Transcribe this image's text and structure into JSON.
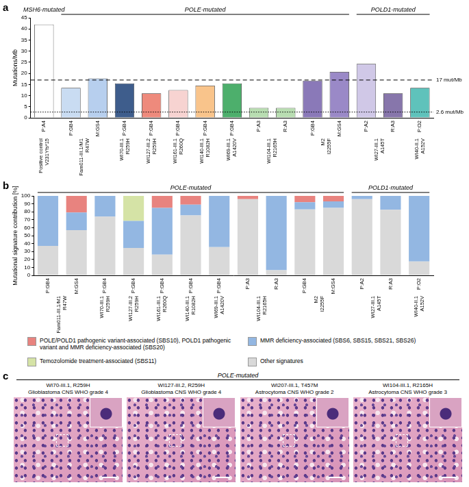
{
  "panel_labels": [
    "a",
    "b",
    "c"
  ],
  "chart_data": [
    {
      "type": "bar",
      "y_label": "Mutations/Mb",
      "categories": [
        "P:A4",
        "P:GB4",
        "M:GS4",
        "P:GB4",
        "P:GB4",
        "P:GB4",
        "P:GB4",
        "P:GB4",
        "P:A3",
        "R:A3",
        "P:GB4",
        "M:GS4",
        "P:A2",
        "R:A3",
        "P:O2"
      ],
      "values": [
        42,
        13.5,
        17.7,
        15.5,
        11,
        12.5,
        14.5,
        15.5,
        4.5,
        4.5,
        16.7,
        20.7,
        24.3,
        11,
        13.5
      ],
      "colors": [
        "#ffffff",
        "#c9dcf2",
        "#b7cfee",
        "#3e5d8c",
        "#ee8a7c",
        "#f7d3d1",
        "#f9c48b",
        "#4daf6c",
        "#b8ddb1",
        "#b8ddb1",
        "#8a79b8",
        "#9a89c7",
        "#d0c8e7",
        "#8776ab",
        "#5fc2bb"
      ],
      "patients": [
        {
          "label": [
            "Positive control",
            "V231Yfs*15"
          ],
          "first": 0,
          "last": 0
        },
        {
          "label": [
            "Fam011-III.1/M1",
            "R47W"
          ],
          "first": 1,
          "last": 2
        },
        {
          "label": [
            "WI70-III.1",
            "R259H"
          ],
          "first": 3,
          "last": 3
        },
        {
          "label": [
            "WI127-III.2",
            "R259H"
          ],
          "first": 4,
          "last": 4
        },
        {
          "label": [
            "WI161-III.1",
            "R260Q"
          ],
          "first": 5,
          "last": 5
        },
        {
          "label": [
            "WI140-III.1",
            "R1082H"
          ],
          "first": 6,
          "last": 6
        },
        {
          "label": [
            "WI69-III.1",
            "A1420V"
          ],
          "first": 7,
          "last": 7
        },
        {
          "label": [
            "WI104-III.1",
            "R2165H"
          ],
          "first": 8,
          "last": 9
        },
        {
          "label": [
            "M2",
            "I2255F"
          ],
          "first": 10,
          "last": 11
        },
        {
          "label": [
            "WI27-III.1",
            "A145T"
          ],
          "first": 12,
          "last": 13
        },
        {
          "label": [
            "WI40-II.1",
            "A152V"
          ],
          "first": 14,
          "last": 14
        }
      ],
      "groups": [
        {
          "label": "MSH6-mutated",
          "first": 0,
          "last": 0
        },
        {
          "label": "POLE-mutated",
          "first": 1,
          "last": 11
        },
        {
          "label": "POLD1-mutated",
          "first": 12,
          "last": 14
        }
      ],
      "reference_lines": [
        {
          "value": 17,
          "label": "17 mut/Mb",
          "line_style": "dashed"
        },
        {
          "value": 2.6,
          "label": "2.6 mut/Mb",
          "line_style": "dotted"
        }
      ],
      "ylim": [
        0,
        45
      ],
      "yticks": [
        0,
        5,
        10,
        15,
        20,
        25,
        30,
        35,
        40,
        45
      ],
      "grid": false,
      "legend": false
    },
    {
      "type": "bar",
      "stacked": true,
      "y_label": "Mutational signature contribution [%]",
      "categories": [
        "P:GB4",
        "M:GS4",
        "P:GB4",
        "P:GB4",
        "P:GB4",
        "P:GB4",
        "P:GB4",
        "P:A3",
        "R:A3",
        "P:GB4",
        "M:GS4",
        "P:A2",
        "R:A3",
        "P:O2"
      ],
      "series": [
        {
          "name": "POLE/POLD1 pathogenic variant-associated (SBS10), POLD1 pathogenic variant and MMR deficiency-associated (SBS20)",
          "color": "#e8837f",
          "values": [
            0,
            21,
            0,
            0,
            15,
            11,
            0,
            4,
            0,
            8,
            7,
            0,
            0,
            0
          ]
        },
        {
          "name": "Temozolomide treatment-associated (SBS11)",
          "color": "#d5e3a6",
          "values": [
            0,
            0,
            0,
            31.5,
            0,
            0,
            0,
            0,
            0,
            0,
            0,
            0,
            0,
            0
          ]
        },
        {
          "name": "MMR deficiency-associated (SBS6, SBS15, SBS21, SBS26)",
          "color": "#93b7e2",
          "values": [
            63,
            22,
            26,
            34,
            59,
            13.5,
            64.5,
            0,
            93.5,
            9,
            8,
            4,
            17.5,
            82.5
          ]
        },
        {
          "name": "Other signatures",
          "color": "#d9d9d9",
          "values": [
            37,
            57,
            74,
            34.5,
            26,
            75.5,
            35.5,
            96,
            6.5,
            83,
            85,
            96,
            82.5,
            17.5
          ]
        }
      ],
      "patients": [
        {
          "label": [
            "Fam011-III.1/M1",
            "R47W"
          ],
          "first": 0,
          "last": 1
        },
        {
          "label": [
            "WI70-III.1",
            "R259H"
          ],
          "first": 2,
          "last": 2
        },
        {
          "label": [
            "WI127-III.2",
            "R259H"
          ],
          "first": 3,
          "last": 3
        },
        {
          "label": [
            "WI161-III.1",
            "R260Q"
          ],
          "first": 4,
          "last": 4
        },
        {
          "label": [
            "WI140-III.1",
            "R1082H"
          ],
          "first": 5,
          "last": 5
        },
        {
          "label": [
            "WI69-III.1",
            "A1420V"
          ],
          "first": 6,
          "last": 6
        },
        {
          "label": [
            "WI104-III.1",
            "R2165H"
          ],
          "first": 7,
          "last": 8
        },
        {
          "label": [
            "M2",
            "I2255F"
          ],
          "first": 9,
          "last": 10
        },
        {
          "label": [
            "WI27-III.1",
            "A145T"
          ],
          "first": 11,
          "last": 12
        },
        {
          "label": [
            "WI40-II.1",
            "A152V"
          ],
          "first": 13,
          "last": 13
        }
      ],
      "groups": [
        {
          "label": "POLE-mutated",
          "first": 0,
          "last": 10
        },
        {
          "label": "POLD1-mutated",
          "first": 11,
          "last": 13
        }
      ],
      "ylim": [
        0,
        100
      ],
      "yticks": [
        0,
        10,
        20,
        30,
        40,
        50,
        60,
        70,
        80,
        90,
        100
      ],
      "grid": false,
      "legend": "bottom"
    }
  ],
  "histology": {
    "group": "POLE-mutated",
    "images": [
      {
        "sample": "WI70-III.1, R259H",
        "diagnosis": "Glioblastoma CNS WHO grade 4"
      },
      {
        "sample": "WI127-III.2, R259H",
        "diagnosis": "Glioblastoma CNS WHO grade 4"
      },
      {
        "sample": "WI207-III.1, T457M",
        "diagnosis": "Astrocytoma CNS WHO grade 2"
      },
      {
        "sample": "WI104-III.1, R2165H",
        "diagnosis": "Astrocytoma CNS WHO grade 3"
      }
    ]
  }
}
